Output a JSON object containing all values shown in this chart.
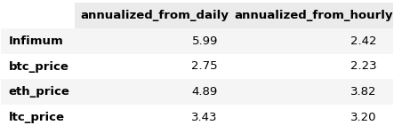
{
  "columns": [
    "annualized_from_daily",
    "annualized_from_hourly"
  ],
  "rows": [
    "Infimum",
    "btc_price",
    "eth_price",
    "ltc_price"
  ],
  "values": [
    [
      5.99,
      2.42
    ],
    [
      2.75,
      2.23
    ],
    [
      4.89,
      3.82
    ],
    [
      3.43,
      3.2
    ]
  ],
  "header_bg": "#ebebeb",
  "odd_row_bg": "#f5f5f5",
  "even_row_bg": "#ffffff",
  "header_fontsize": 9.5,
  "cell_fontsize": 9.5,
  "index_fontsize": 9.5,
  "header_fontweight": "bold",
  "index_fontweight": "bold",
  "text_color": "#000000"
}
